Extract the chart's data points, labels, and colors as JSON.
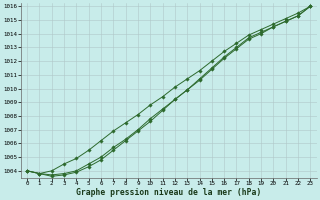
{
  "title": "Graphe pression niveau de la mer (hPa)",
  "background_color": "#c8ecea",
  "grid_color": "#b0c8c8",
  "line_color": "#2d6a2d",
  "marker_color": "#2d6a2d",
  "x_values": [
    0,
    1,
    2,
    3,
    4,
    5,
    6,
    7,
    8,
    9,
    10,
    11,
    12,
    13,
    14,
    15,
    16,
    17,
    18,
    19,
    20,
    21,
    22,
    23
  ],
  "y_line1": [
    1004.0,
    1003.8,
    1003.7,
    1003.8,
    1004.0,
    1004.5,
    1005.0,
    1005.7,
    1006.3,
    1007.0,
    1007.8,
    1008.5,
    1009.2,
    1009.9,
    1010.6,
    1011.4,
    1012.2,
    1012.9,
    1013.6,
    1014.0,
    1014.5,
    1014.9,
    1015.3,
    1016.0
  ],
  "y_line2": [
    1004.0,
    1003.8,
    1004.0,
    1004.5,
    1004.9,
    1005.5,
    1006.2,
    1006.9,
    1007.5,
    1008.1,
    1008.8,
    1009.4,
    1010.1,
    1010.7,
    1011.3,
    1012.0,
    1012.7,
    1013.3,
    1013.9,
    1014.3,
    1014.7,
    1015.1,
    1015.5,
    1016.0
  ],
  "y_line3": [
    1004.0,
    1003.8,
    1003.6,
    1003.7,
    1003.9,
    1004.3,
    1004.8,
    1005.5,
    1006.2,
    1006.9,
    1007.6,
    1008.4,
    1009.2,
    1009.9,
    1010.7,
    1011.5,
    1012.3,
    1013.0,
    1013.7,
    1014.1,
    1014.5,
    1014.9,
    1015.3,
    1016.0
  ],
  "ylim_min": 1003.5,
  "ylim_max": 1016.2,
  "xlim_min": -0.5,
  "xlim_max": 23.5,
  "yticks": [
    1004,
    1005,
    1006,
    1007,
    1008,
    1009,
    1010,
    1011,
    1012,
    1013,
    1014,
    1015,
    1016
  ],
  "xticks": [
    0,
    1,
    2,
    3,
    4,
    5,
    6,
    7,
    8,
    9,
    10,
    11,
    12,
    13,
    14,
    15,
    16,
    17,
    18,
    19,
    20,
    21,
    22,
    23
  ],
  "tick_fontsize": 4.2,
  "xlabel_fontsize": 5.8
}
